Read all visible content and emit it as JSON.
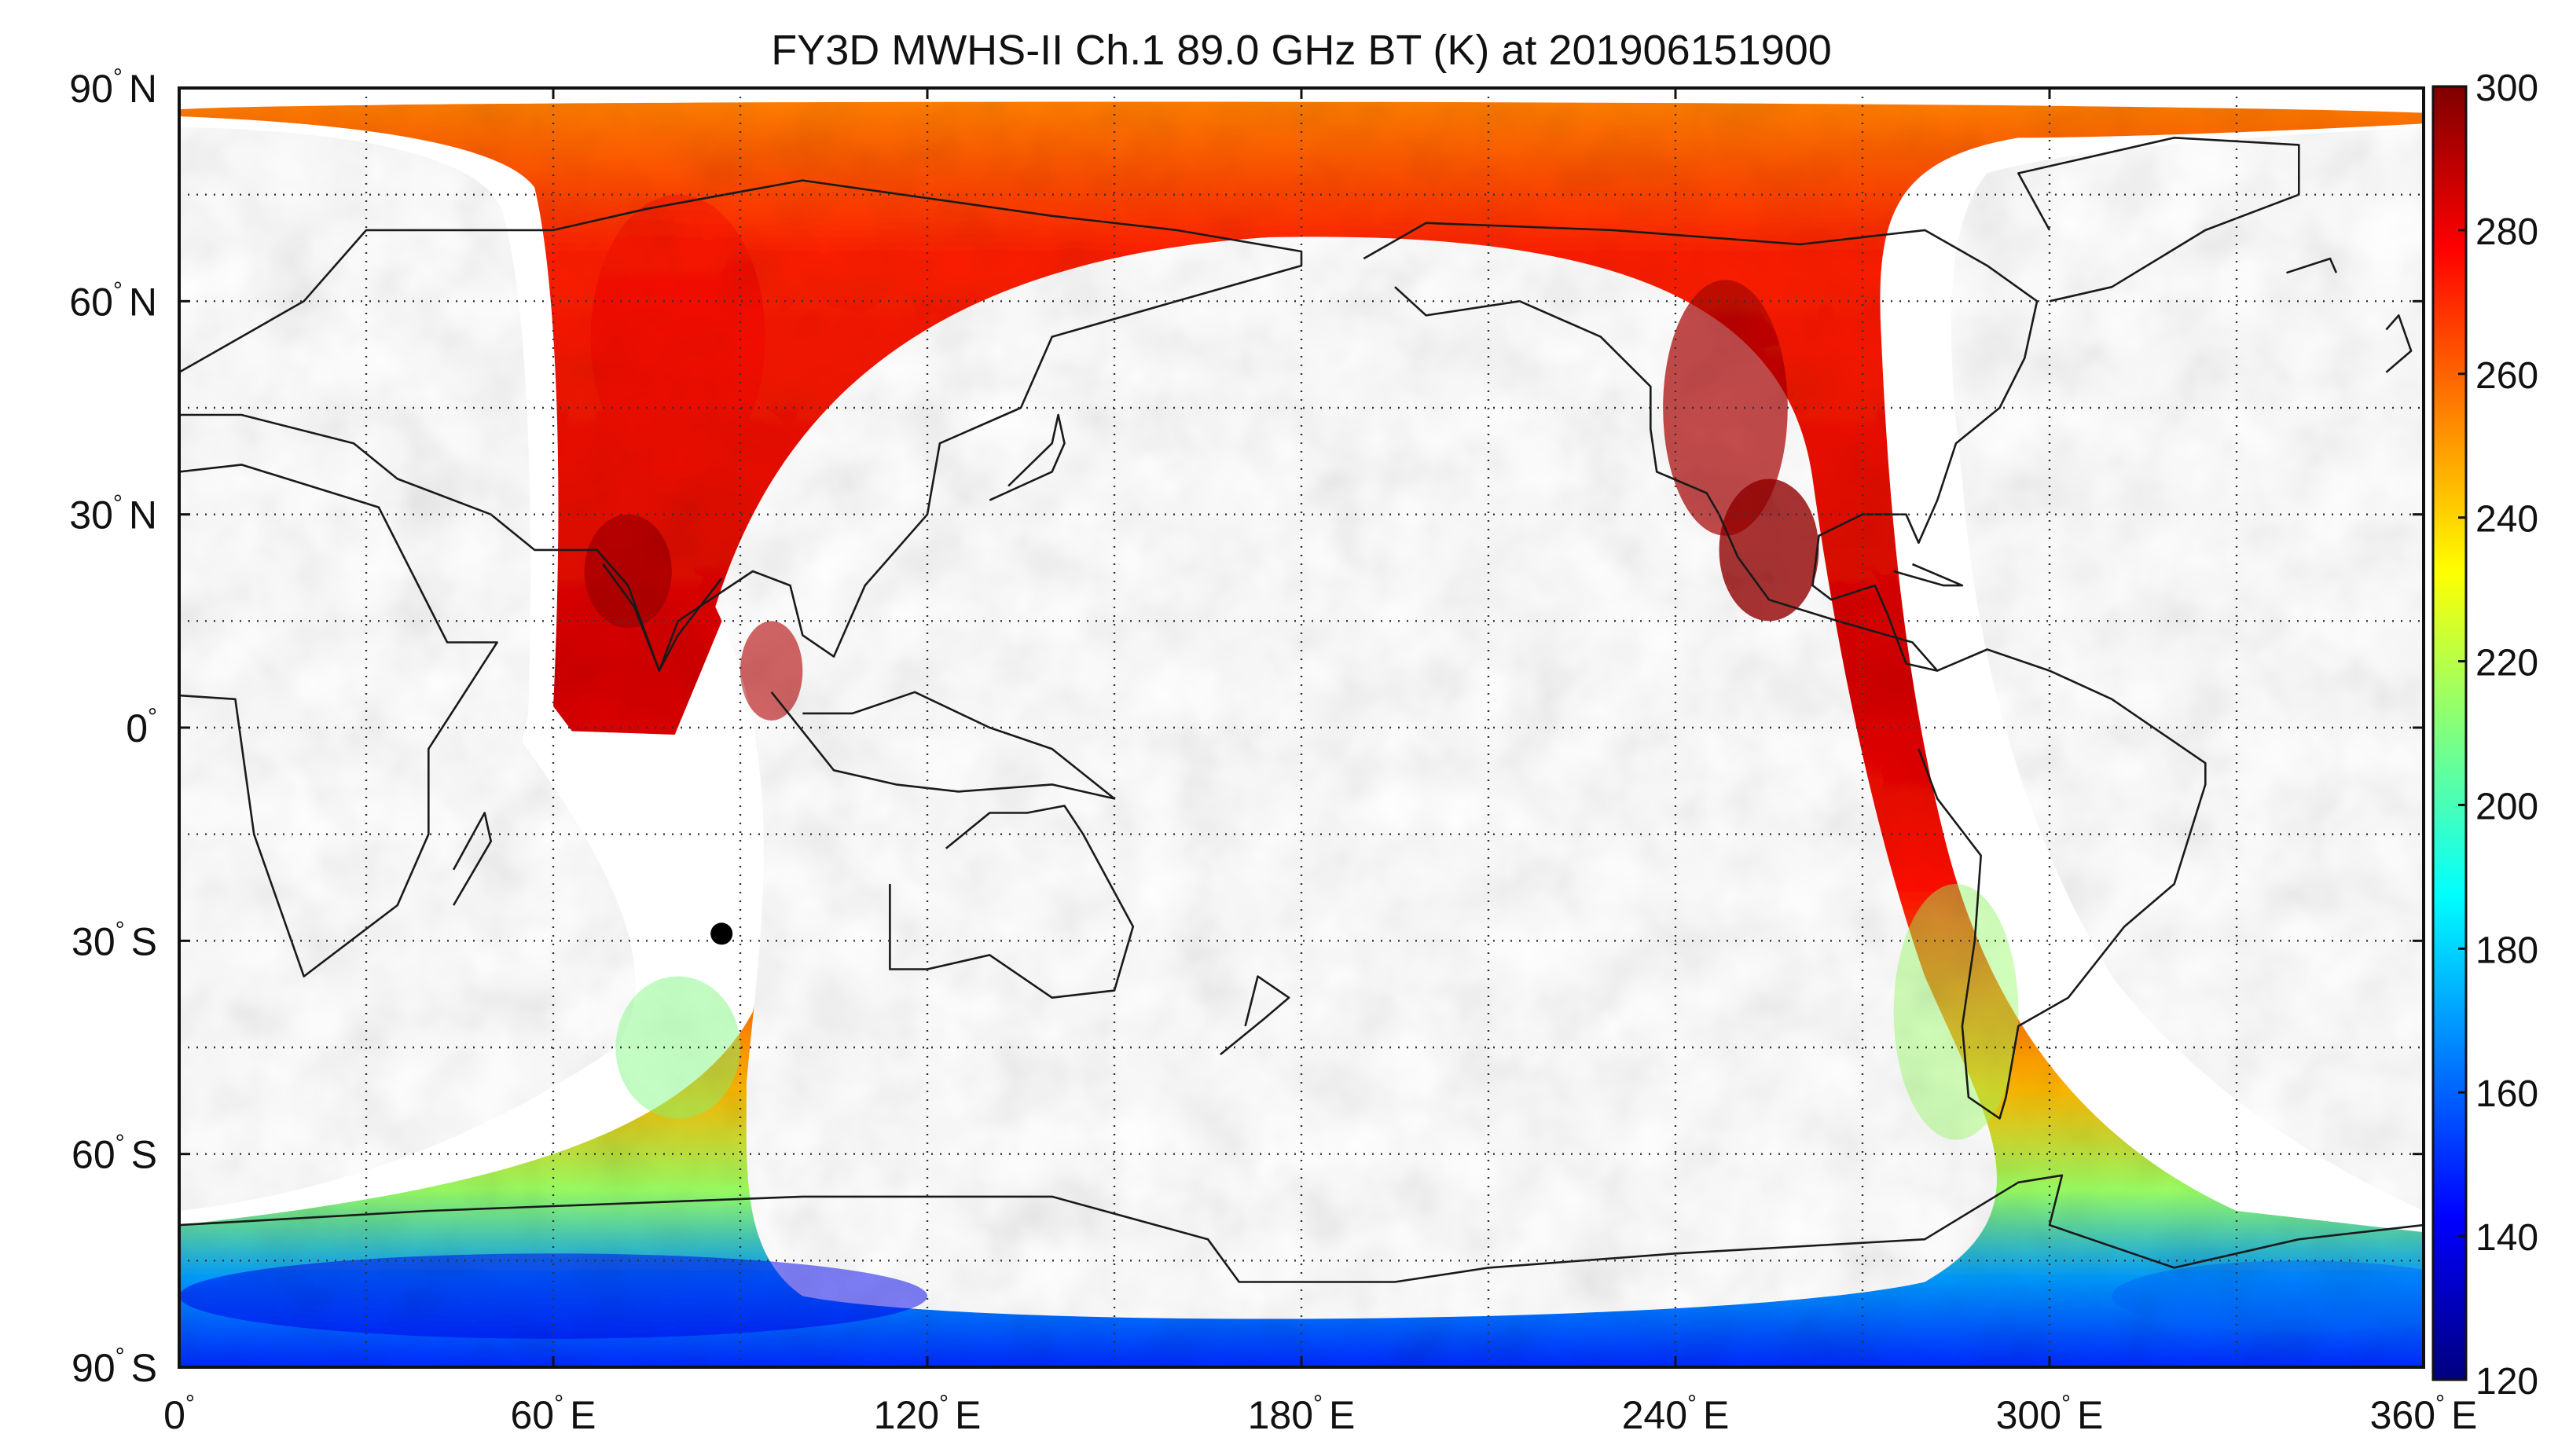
{
  "map": {
    "title": "FY3D MWHS-II Ch.1 89.0 GHz BT (K) at 201906151900",
    "projection": "equirectangular",
    "x_range_deg": [
      0,
      360
    ],
    "y_range_deg": [
      -90,
      90
    ],
    "grid": "dotted",
    "grid_lon_step_deg": 30,
    "grid_lat_step_deg": 15,
    "lon_tick_labels": [
      {
        "value": 0,
        "label": "0",
        "degree_mark": "°",
        "hemisphere": ""
      },
      {
        "value": 60,
        "label": "60",
        "degree_mark": "°",
        "hemisphere": "E"
      },
      {
        "value": 120,
        "label": "120",
        "degree_mark": "°",
        "hemisphere": "E"
      },
      {
        "value": 180,
        "label": "180",
        "degree_mark": "°",
        "hemisphere": "E"
      },
      {
        "value": 240,
        "label": "240",
        "degree_mark": "°",
        "hemisphere": "E"
      },
      {
        "value": 300,
        "label": "300",
        "degree_mark": "°",
        "hemisphere": "E"
      },
      {
        "value": 360,
        "label": "360",
        "degree_mark": "°",
        "hemisphere": "E"
      }
    ],
    "lat_tick_labels": [
      {
        "value": 90,
        "label": "90",
        "degree_mark": "°",
        "hemisphere": "N"
      },
      {
        "value": 60,
        "label": "60",
        "degree_mark": "°",
        "hemisphere": "N"
      },
      {
        "value": 30,
        "label": "30",
        "degree_mark": "°",
        "hemisphere": "N"
      },
      {
        "value": 0,
        "label": "0",
        "degree_mark": "°",
        "hemisphere": ""
      },
      {
        "value": -30,
        "label": "30",
        "degree_mark": "°",
        "hemisphere": "S"
      },
      {
        "value": -60,
        "label": "60",
        "degree_mark": "°",
        "hemisphere": "S"
      },
      {
        "value": -90,
        "label": "90",
        "degree_mark": "°",
        "hemisphere": "S"
      }
    ],
    "marker": {
      "lon": 87,
      "lat": -29,
      "color": "#000000"
    },
    "swaths": [
      {
        "segment": "indian-ocean-tropical",
        "corners": [
          [
            58,
            3
          ],
          [
            76,
            17
          ],
          [
            79.5,
            -1
          ],
          [
            63,
            -0.5
          ]
        ],
        "mean_bt_k": 275
      },
      {
        "segment": "indian-ocean-southern",
        "polygon": [
          [
            88,
            17
          ],
          [
            106,
            14
          ],
          [
            103,
            0
          ],
          [
            98,
            -20
          ],
          [
            94,
            -35
          ],
          [
            90,
            -50
          ],
          [
            90,
            -60
          ],
          [
            91,
            -68
          ],
          [
            94,
            -72
          ],
          [
            104,
            -75
          ],
          [
            120,
            -78
          ],
          [
            150,
            -79
          ],
          [
            190,
            -78
          ],
          [
            220,
            -77
          ],
          [
            240,
            -76
          ],
          [
            250,
            -74
          ],
          [
            258,
            -72
          ],
          [
            270,
            -68
          ],
          [
            285,
            -60
          ],
          [
            300,
            -50
          ],
          [
            320,
            -75
          ],
          [
            360,
            -72
          ],
          [
            360,
            -90
          ],
          [
            0,
            -90
          ],
          [
            0,
            -70
          ],
          [
            30,
            -65
          ],
          [
            55,
            -55
          ],
          [
            70,
            -45
          ],
          [
            78,
            -30
          ],
          [
            83,
            -10
          ]
        ],
        "mean_bt_k": 245
      },
      {
        "segment": "northern-arc",
        "polygon": [
          [
            60,
            30
          ],
          [
            58,
            60
          ],
          [
            56,
            75
          ],
          [
            48,
            81
          ],
          [
            6,
            87
          ],
          [
            300,
            88
          ],
          [
            350,
            86
          ],
          [
            340,
            83
          ],
          [
            298,
            84
          ],
          [
            272,
            80
          ],
          [
            263,
            70
          ],
          [
            260,
            50
          ],
          [
            258,
            30
          ],
          [
            262,
            10
          ],
          [
            270,
            -15
          ],
          [
            280,
            -35
          ],
          [
            292,
            -52
          ],
          [
            310,
            -66
          ],
          [
            355,
            -70
          ],
          [
            360,
            -70
          ],
          [
            345,
            -60
          ],
          [
            300,
            -45
          ],
          [
            280,
            -20
          ],
          [
            275,
            0
          ],
          [
            275,
            20
          ],
          [
            280,
            50
          ],
          [
            287,
            70
          ],
          [
            285,
            76
          ],
          [
            220,
            72
          ],
          [
            170,
            69
          ],
          [
            150,
            66
          ],
          [
            123,
            56
          ],
          [
            108,
            42
          ],
          [
            96,
            25
          ],
          [
            84,
            20
          ]
        ],
        "mean_bt_k": 272
      }
    ],
    "background_color": "#ffffff",
    "coastline_color": "#1a1a1a"
  },
  "colorbar": {
    "min_k": 120,
    "max_k": 300,
    "tick_values": [
      120,
      140,
      160,
      180,
      200,
      220,
      240,
      260,
      280,
      300
    ],
    "tick_labels": [
      "120",
      "140",
      "160",
      "180",
      "200",
      "220",
      "240",
      "260",
      "280",
      "300"
    ],
    "colormap": "jet",
    "colors": [
      "#00007f",
      "#0000ff",
      "#007fff",
      "#00ffff",
      "#7fff7f",
      "#ffff00",
      "#ff7f00",
      "#ff0000",
      "#7f0000"
    ]
  }
}
